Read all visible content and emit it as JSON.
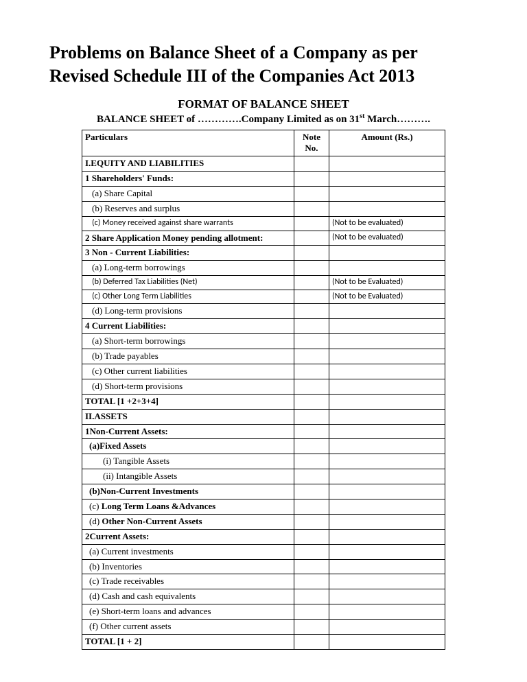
{
  "title": "Problems on Balance Sheet of a Company as per Revised Schedule III of the Companies Act 2013",
  "subtitle": "FORMAT OF BALANCE SHEET",
  "subheader_prefix": "BALANCE SHEET of ………….Company Limited as on 31",
  "subheader_sup": "st",
  "subheader_suffix": " March……….",
  "headers": {
    "particulars": "Particulars",
    "note": "Note No.",
    "amount": "Amount (Rs.)"
  },
  "rows": [
    {
      "p": "I.EQUITY AND LIABILITIES",
      "bold": true,
      "n": "",
      "a": ""
    },
    {
      "p": "1 Shareholders' Funds:",
      "bold": true,
      "n": "",
      "a": ""
    },
    {
      "p": "(a) Share Capital",
      "ind": 1,
      "n": "",
      "a": ""
    },
    {
      "p": "(b) Reserves and surplus",
      "ind": 1,
      "n": "",
      "a": ""
    },
    {
      "p": "(c) Money received against share warrants",
      "ind": 1,
      "cal": true,
      "n": "",
      "a": "(Not to be evaluated)"
    },
    {
      "p": "2 Share Application Money pending allotment:",
      "bold": true,
      "n": "",
      "a": "(Not to be evaluated)"
    },
    {
      "p": "3 Non - Current  Liabilities:",
      "bold": true,
      "n": "",
      "a": ""
    },
    {
      "p": "(a) Long-term borrowings",
      "ind": 1,
      "n": "",
      "a": ""
    },
    {
      "p": "(b) Deferred Tax Liabilities (Net)",
      "ind": 1,
      "cal": true,
      "n": "",
      "a": "(Not to be Evaluated)"
    },
    {
      "p": "(c) Other Long Term Liabilities",
      "ind": 1,
      "cal": true,
      "n": "",
      "a": "(Not to be Evaluated)"
    },
    {
      "p": "(d) Long-term provisions",
      "ind": 1,
      "n": "",
      "a": ""
    },
    {
      "p": "4 Current  Liabilities:",
      "bold": true,
      "n": "",
      "a": ""
    },
    {
      "p": "(a) Short-term borrowings",
      "ind": 1,
      "n": "",
      "a": ""
    },
    {
      "p": "(b) Trade payables",
      "ind": 1,
      "n": "",
      "a": ""
    },
    {
      "p": "(c) Other current liabilities",
      "ind": 1,
      "n": "",
      "a": ""
    },
    {
      "p": "(d) Short-term provisions",
      "ind": 1,
      "n": "",
      "a": ""
    },
    {
      "p": "TOTAL [1 +2+3+4]",
      "total": true,
      "n": "",
      "a": ""
    },
    {
      "p": "II.ASSETS",
      "bold": true,
      "n": "",
      "a": ""
    },
    {
      "p": "1Non-Current Assets:",
      "bold": true,
      "n": "",
      "a": ""
    },
    {
      "p": "(a)Fixed Assets",
      "bold": true,
      "ind": 0,
      "pad": 6,
      "n": "",
      "a": ""
    },
    {
      "p": "(i)  Tangible Assets",
      "ind": 2,
      "n": "",
      "a": ""
    },
    {
      "p": "(ii) Intangible Assets",
      "ind": 2,
      "n": "",
      "a": ""
    },
    {
      "p": "(b)Non-Current Investments",
      "bold": true,
      "pad": 6,
      "n": "",
      "a": ""
    },
    {
      "p": "(c) Long Term Loans &Advances",
      "boldpart": true,
      "pad": 6,
      "n": "",
      "a": ""
    },
    {
      "p": "(d) Other Non-Current Assets",
      "boldpart": true,
      "pad": 6,
      "n": "",
      "a": ""
    },
    {
      "p": "2Current Assets:",
      "bold": true,
      "n": "",
      "a": ""
    },
    {
      "p": "(a) Current investments",
      "ind": 0,
      "pad": 6,
      "n": "",
      "a": ""
    },
    {
      "p": "(b) Inventories",
      "pad": 6,
      "n": "",
      "a": ""
    },
    {
      "p": "(c) Trade receivables",
      "pad": 6,
      "n": "",
      "a": ""
    },
    {
      "p": "(d) Cash and cash equivalents",
      "pad": 6,
      "n": "",
      "a": ""
    },
    {
      "p": "(e) Short-term loans and advances",
      "pad": 6,
      "n": "",
      "a": ""
    },
    {
      "p": "(f) Other current assets",
      "pad": 6,
      "n": "",
      "a": ""
    },
    {
      "p": "TOTAL    [1 + 2]",
      "total": true,
      "n": "",
      "a": ""
    }
  ]
}
